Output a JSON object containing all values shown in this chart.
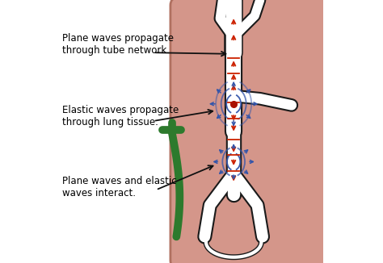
{
  "bg_color": "#ffffff",
  "lung_color": "#d4968a",
  "lung_edge_color": "#b07060",
  "tube_color": "#ffffff",
  "tube_edge_color": "#1a1a1a",
  "red_arrow_color": "#cc2200",
  "blue_arrow_color": "#3355aa",
  "green_tube_color": "#2d7a2d",
  "dot_color": "#aa1100",
  "text_color": "#000000",
  "annotation_arrow_color": "#111111",
  "label1": "Plane waves propagate\nthrough tube network.",
  "label2": "Elastic waves propagate\nthrough lung tissue.",
  "label3": "Plane waves and elastic\nwaves interact.",
  "figsize": [
    4.74,
    3.26
  ],
  "dpi": 100
}
